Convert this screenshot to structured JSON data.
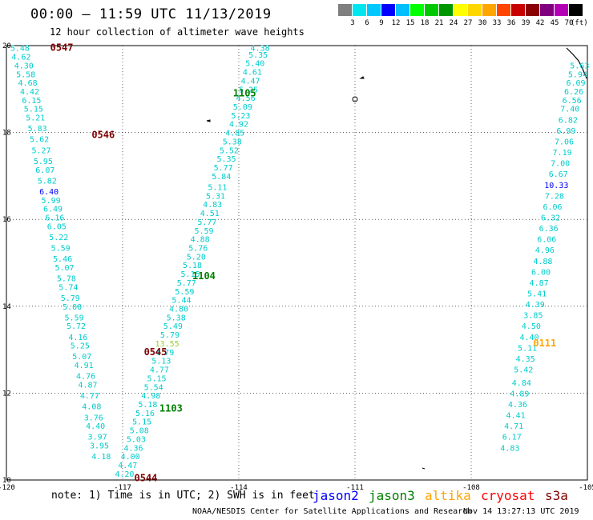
{
  "title": "00:00 – 11:59 UTC 11/13/2019",
  "subtitle": "12 hour collection of altimeter wave heights",
  "scale": {
    "colors": [
      "#7f7f7f",
      "#00e5ee",
      "#00c8ff",
      "#0000ff",
      "#00bfff",
      "#00ff00",
      "#00c800",
      "#009600",
      "#ffff00",
      "#ffd700",
      "#ffa500",
      "#ff4500",
      "#c80000",
      "#8b0000",
      "#800080",
      "#b400b4",
      "#000000"
    ],
    "labels": [
      "3",
      "6",
      "9",
      "12",
      "15",
      "18",
      "21",
      "24",
      "27",
      "30",
      "33",
      "36",
      "39",
      "42",
      "45",
      "70"
    ],
    "unit": "(ft)"
  },
  "axes": {
    "y_ticks": [
      "20",
      "18",
      "16",
      "14",
      "12",
      "10"
    ],
    "x_ticks": [
      "-120",
      "-117",
      "-114",
      "-111",
      "-108",
      "-105"
    ],
    "x_min": -120,
    "x_max": -105,
    "y_min": 10,
    "y_max": 20
  },
  "colors": {
    "cyan": "#00cccc",
    "blue": "#0000ff",
    "dark_red": "#800000",
    "green": "#008000",
    "yellow_green": "#9acd32",
    "orange": "#ffa500",
    "red": "#ff0000"
  },
  "time_labels": [
    {
      "text": "0547",
      "lon": -118.87,
      "lat": 19.95,
      "color": "#800000"
    },
    {
      "text": "0546",
      "lon": -117.8,
      "lat": 17.95,
      "color": "#800000"
    },
    {
      "text": "0545",
      "lon": -116.45,
      "lat": 12.95,
      "color": "#800000"
    },
    {
      "text": "0544",
      "lon": -116.7,
      "lat": 10.05,
      "color": "#800000"
    },
    {
      "text": "1105",
      "lon": -114.15,
      "lat": 18.9,
      "color": "#008000"
    },
    {
      "text": "1104",
      "lon": -115.2,
      "lat": 14.7,
      "color": "#008000"
    },
    {
      "text": "1103",
      "lon": -116.05,
      "lat": 11.65,
      "color": "#008000"
    },
    {
      "text": "0111",
      "lon": -106.4,
      "lat": 13.15,
      "color": "#ffa500"
    }
  ],
  "tracks": [
    {
      "name": "0547-0544",
      "color": "#00cccc",
      "points": [
        {
          "lon": -119.65,
          "lat": 19.95,
          "v": "5.48"
        },
        {
          "lon": -119.62,
          "lat": 19.75,
          "v": "4.62"
        },
        {
          "lon": -119.55,
          "lat": 19.55,
          "v": "4.30"
        },
        {
          "lon": -119.5,
          "lat": 19.35,
          "v": "5.58"
        },
        {
          "lon": -119.45,
          "lat": 19.15,
          "v": "4.68"
        },
        {
          "lon": -119.4,
          "lat": 18.95,
          "v": "4.42"
        },
        {
          "lon": -119.35,
          "lat": 18.75,
          "v": "6.15"
        },
        {
          "lon": -119.3,
          "lat": 18.55,
          "v": "5.15"
        },
        {
          "lon": -119.25,
          "lat": 18.35,
          "v": "5.21"
        },
        {
          "lon": -119.2,
          "lat": 18.1,
          "v": "5.83"
        },
        {
          "lon": -119.15,
          "lat": 17.85,
          "v": "5.62"
        },
        {
          "lon": -119.1,
          "lat": 17.6,
          "v": "5.27"
        },
        {
          "lon": -119.05,
          "lat": 17.35,
          "v": "5.95"
        },
        {
          "lon": -119.0,
          "lat": 17.15,
          "v": "6.07"
        },
        {
          "lon": -118.95,
          "lat": 16.9,
          "v": "5.82"
        },
        {
          "lon": -118.9,
          "lat": 16.65,
          "v": "6.40",
          "c": "#0000ff"
        },
        {
          "lon": -118.85,
          "lat": 16.45,
          "v": "5.99"
        },
        {
          "lon": -118.8,
          "lat": 16.25,
          "v": "6.49"
        },
        {
          "lon": -118.75,
          "lat": 16.05,
          "v": "6.16"
        },
        {
          "lon": -118.7,
          "lat": 15.85,
          "v": "6.05"
        },
        {
          "lon": -118.65,
          "lat": 15.6,
          "v": "5.22"
        },
        {
          "lon": -118.6,
          "lat": 15.35,
          "v": "5.59"
        },
        {
          "lon": -118.55,
          "lat": 15.1,
          "v": "5.46"
        },
        {
          "lon": -118.5,
          "lat": 14.9,
          "v": "5.07"
        },
        {
          "lon": -118.45,
          "lat": 14.65,
          "v": "5.78"
        },
        {
          "lon": -118.4,
          "lat": 14.45,
          "v": "5.74"
        },
        {
          "lon": -118.35,
          "lat": 14.2,
          "v": "5.79"
        },
        {
          "lon": -118.3,
          "lat": 14.0,
          "v": "5.00"
        },
        {
          "lon": -118.25,
          "lat": 13.75,
          "v": "5.59"
        },
        {
          "lon": -118.2,
          "lat": 13.55,
          "v": "5.72"
        },
        {
          "lon": -118.15,
          "lat": 13.3,
          "v": "4.16"
        },
        {
          "lon": -118.1,
          "lat": 13.1,
          "v": "5.25"
        },
        {
          "lon": -118.05,
          "lat": 12.85,
          "v": "5.07"
        },
        {
          "lon": -118.0,
          "lat": 12.65,
          "v": "4.91"
        },
        {
          "lon": -117.95,
          "lat": 12.4,
          "v": "4.76"
        },
        {
          "lon": -117.9,
          "lat": 12.2,
          "v": "4.87"
        },
        {
          "lon": -117.85,
          "lat": 11.95,
          "v": "4.77"
        },
        {
          "lon": -117.8,
          "lat": 11.7,
          "v": "4.08"
        },
        {
          "lon": -117.75,
          "lat": 11.45,
          "v": "3.76"
        },
        {
          "lon": -117.7,
          "lat": 11.25,
          "v": "4.40"
        },
        {
          "lon": -117.65,
          "lat": 11.0,
          "v": "3.97"
        },
        {
          "lon": -117.6,
          "lat": 10.8,
          "v": "3.95"
        },
        {
          "lon": -117.55,
          "lat": 10.55,
          "v": "4.18"
        }
      ]
    },
    {
      "name": "1105-1103",
      "color": "#00cccc",
      "points": [
        {
          "lon": -113.45,
          "lat": 19.95,
          "v": "4.38"
        },
        {
          "lon": -113.5,
          "lat": 19.8,
          "v": "5.35"
        },
        {
          "lon": -113.58,
          "lat": 19.6,
          "v": "5.40"
        },
        {
          "lon": -113.65,
          "lat": 19.4,
          "v": "4.61"
        },
        {
          "lon": -113.7,
          "lat": 19.2,
          "v": "4.47"
        },
        {
          "lon": -113.75,
          "lat": 19.0,
          "v": "5.25"
        },
        {
          "lon": -113.82,
          "lat": 18.8,
          "v": "4.56"
        },
        {
          "lon": -113.9,
          "lat": 18.6,
          "v": "5.09"
        },
        {
          "lon": -113.95,
          "lat": 18.4,
          "v": "5.23"
        },
        {
          "lon": -114.0,
          "lat": 18.2,
          "v": "4.92"
        },
        {
          "lon": -114.1,
          "lat": 18.0,
          "v": "4.85"
        },
        {
          "lon": -114.17,
          "lat": 17.8,
          "v": "5.38"
        },
        {
          "lon": -114.25,
          "lat": 17.6,
          "v": "5.52"
        },
        {
          "lon": -114.32,
          "lat": 17.4,
          "v": "5.35"
        },
        {
          "lon": -114.4,
          "lat": 17.2,
          "v": "5.77"
        },
        {
          "lon": -114.45,
          "lat": 17.0,
          "v": "5.84"
        },
        {
          "lon": -114.55,
          "lat": 16.75,
          "v": "5.11"
        },
        {
          "lon": -114.6,
          "lat": 16.55,
          "v": "5.31"
        },
        {
          "lon": -114.68,
          "lat": 16.35,
          "v": "4.83"
        },
        {
          "lon": -114.75,
          "lat": 16.15,
          "v": "4.51"
        },
        {
          "lon": -114.82,
          "lat": 15.95,
          "v": "5.77"
        },
        {
          "lon": -114.9,
          "lat": 15.75,
          "v": "5.59"
        },
        {
          "lon": -115.0,
          "lat": 15.55,
          "v": "4.88"
        },
        {
          "lon": -115.05,
          "lat": 15.35,
          "v": "5.76"
        },
        {
          "lon": -115.1,
          "lat": 15.15,
          "v": "5.20"
        },
        {
          "lon": -115.2,
          "lat": 14.95,
          "v": "5.18"
        },
        {
          "lon": -115.25,
          "lat": 14.75,
          "v": "5.15"
        },
        {
          "lon": -115.35,
          "lat": 14.55,
          "v": "5.77"
        },
        {
          "lon": -115.4,
          "lat": 14.35,
          "v": "5.59"
        },
        {
          "lon": -115.48,
          "lat": 14.15,
          "v": "5.44"
        },
        {
          "lon": -115.55,
          "lat": 13.95,
          "v": "4.80"
        },
        {
          "lon": -115.62,
          "lat": 13.75,
          "v": "5.38"
        },
        {
          "lon": -115.7,
          "lat": 13.55,
          "v": "5.49"
        },
        {
          "lon": -115.78,
          "lat": 13.35,
          "v": "5.79"
        },
        {
          "lon": -115.85,
          "lat": 13.15,
          "v": "13.55",
          "c": "#9acd32"
        },
        {
          "lon": -115.92,
          "lat": 12.95,
          "v": "4.79"
        },
        {
          "lon": -116.0,
          "lat": 12.75,
          "v": "5.13"
        },
        {
          "lon": -116.05,
          "lat": 12.55,
          "v": "4.77"
        },
        {
          "lon": -116.12,
          "lat": 12.35,
          "v": "5.15"
        },
        {
          "lon": -116.2,
          "lat": 12.15,
          "v": "5.54"
        },
        {
          "lon": -116.27,
          "lat": 11.95,
          "v": "4.98"
        },
        {
          "lon": -116.35,
          "lat": 11.75,
          "v": "5.18"
        },
        {
          "lon": -116.42,
          "lat": 11.55,
          "v": "5.16"
        },
        {
          "lon": -116.5,
          "lat": 11.35,
          "v": "5.15"
        },
        {
          "lon": -116.57,
          "lat": 11.15,
          "v": "5.08"
        },
        {
          "lon": -116.65,
          "lat": 10.95,
          "v": "5.03"
        },
        {
          "lon": -116.72,
          "lat": 10.75,
          "v": "4.36"
        },
        {
          "lon": -116.8,
          "lat": 10.55,
          "v": "4.00"
        },
        {
          "lon": -116.87,
          "lat": 10.35,
          "v": "4.47"
        },
        {
          "lon": -116.95,
          "lat": 10.15,
          "v": "4.20"
        }
      ]
    },
    {
      "name": "0111",
      "color": "#00cccc",
      "points": [
        {
          "lon": -105.2,
          "lat": 19.55,
          "v": "5.63"
        },
        {
          "lon": -105.25,
          "lat": 19.35,
          "v": "5.94"
        },
        {
          "lon": -105.3,
          "lat": 19.15,
          "v": "6.09"
        },
        {
          "lon": -105.35,
          "lat": 18.95,
          "v": "6.26"
        },
        {
          "lon": -105.4,
          "lat": 18.75,
          "v": "6.56"
        },
        {
          "lon": -105.45,
          "lat": 18.55,
          "v": "7.40"
        },
        {
          "lon": -105.5,
          "lat": 18.3,
          "v": "6.82"
        },
        {
          "lon": -105.55,
          "lat": 18.05,
          "v": "6.99"
        },
        {
          "lon": -105.6,
          "lat": 17.8,
          "v": "7.06"
        },
        {
          "lon": -105.65,
          "lat": 17.55,
          "v": "7.19"
        },
        {
          "lon": -105.7,
          "lat": 17.3,
          "v": "7.00"
        },
        {
          "lon": -105.75,
          "lat": 17.05,
          "v": "6.67"
        },
        {
          "lon": -105.8,
          "lat": 16.8,
          "v": "10.33",
          "c": "#0000ff"
        },
        {
          "lon": -105.85,
          "lat": 16.55,
          "v": "7.28"
        },
        {
          "lon": -105.9,
          "lat": 16.3,
          "v": "6.06"
        },
        {
          "lon": -105.95,
          "lat": 16.05,
          "v": "6.32"
        },
        {
          "lon": -106.0,
          "lat": 15.8,
          "v": "6.36"
        },
        {
          "lon": -106.05,
          "lat": 15.55,
          "v": "6.06"
        },
        {
          "lon": -106.1,
          "lat": 15.3,
          "v": "4.96"
        },
        {
          "lon": -106.15,
          "lat": 15.05,
          "v": "4.88"
        },
        {
          "lon": -106.2,
          "lat": 14.8,
          "v": "6.00"
        },
        {
          "lon": -106.25,
          "lat": 14.55,
          "v": "4.87"
        },
        {
          "lon": -106.3,
          "lat": 14.3,
          "v": "5.41"
        },
        {
          "lon": -106.35,
          "lat": 14.05,
          "v": "4.39"
        },
        {
          "lon": -106.4,
          "lat": 13.8,
          "v": "3.85"
        },
        {
          "lon": -106.45,
          "lat": 13.55,
          "v": "4.50"
        },
        {
          "lon": -106.5,
          "lat": 13.3,
          "v": "4.40"
        },
        {
          "lon": -106.55,
          "lat": 13.05,
          "v": "5.11"
        },
        {
          "lon": -106.6,
          "lat": 12.8,
          "v": "4.35"
        },
        {
          "lon": -106.65,
          "lat": 12.55,
          "v": "5.42"
        },
        {
          "lon": -106.7,
          "lat": 12.25,
          "v": "4.84"
        },
        {
          "lon": -106.75,
          "lat": 12.0,
          "v": "4.89"
        },
        {
          "lon": -106.8,
          "lat": 11.75,
          "v": "4.36"
        },
        {
          "lon": -106.85,
          "lat": 11.5,
          "v": "4.41"
        },
        {
          "lon": -106.9,
          "lat": 11.25,
          "v": "4.71"
        },
        {
          "lon": -106.95,
          "lat": 11.0,
          "v": "6.17"
        },
        {
          "lon": -107.0,
          "lat": 10.75,
          "v": "4.83"
        }
      ]
    }
  ],
  "note": "note: 1) Time is in UTC; 2) SWH is in feet",
  "legend": [
    {
      "label": "jason2",
      "color": "#0000ff"
    },
    {
      "label": "jason3",
      "color": "#008000"
    },
    {
      "label": "altika",
      "color": "#ffa500"
    },
    {
      "label": "cryosat",
      "color": "#ff0000"
    },
    {
      "label": "s3a",
      "color": "#800000"
    }
  ],
  "footer_left": "NOAA/NESDIS Center for Satellite Applications and Research",
  "footer_right": "Nov 14 13:27:13 UTC 2019"
}
